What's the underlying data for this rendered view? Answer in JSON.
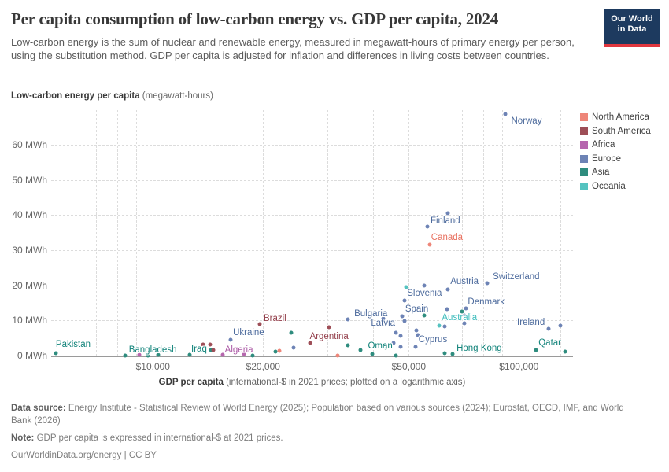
{
  "header": {
    "title": "Per capita consumption of low-carbon energy vs. GDP per capita, 2024",
    "subtitle": "Low-carbon energy is the sum of nuclear and renewable energy, measured in megawatt-hours of primary energy per person, using the substitution method. GDP per capita is adjusted for inflation and differences in living costs between countries."
  },
  "logo": {
    "line1": "Our World",
    "line2": "in Data",
    "bg_color": "#1d3a5f",
    "accent_color": "#e0373f"
  },
  "y_axis": {
    "title_bold": "Low-carbon energy per capita",
    "title_normal": " (megawatt-hours)",
    "ticks": [
      {
        "value": 0,
        "label": "0 MWh"
      },
      {
        "value": 10,
        "label": "10 MWh"
      },
      {
        "value": 20,
        "label": "20 MWh"
      },
      {
        "value": 30,
        "label": "30 MWh"
      },
      {
        "value": 40,
        "label": "40 MWh"
      },
      {
        "value": 50,
        "label": "50 MWh"
      },
      {
        "value": 60,
        "label": "60 MWh"
      }
    ]
  },
  "x_axis": {
    "title_bold": "GDP per capita",
    "title_normal": " (international-$ in 2021 prices; plotted on a logarithmic axis)",
    "ticks": [
      {
        "value": 10000,
        "label": "$10,000"
      },
      {
        "value": 20000,
        "label": "$20,000"
      },
      {
        "value": 50000,
        "label": "$50,000"
      },
      {
        "value": 100000,
        "label": "$100,000"
      }
    ],
    "minor_gridlines": [
      6000,
      7000,
      8000,
      9000,
      10000,
      20000,
      30000,
      40000,
      50000,
      60000,
      70000,
      80000,
      90000,
      100000,
      130000
    ]
  },
  "legend": [
    {
      "region": "North America",
      "color": "#ee8679"
    },
    {
      "region": "South America",
      "color": "#9e4e57"
    },
    {
      "region": "Africa",
      "color": "#b666ae"
    },
    {
      "region": "Europe",
      "color": "#6d83b5"
    },
    {
      "region": "Asia",
      "color": "#2e8c7e"
    },
    {
      "region": "Oceania",
      "color": "#55c3c0"
    }
  ],
  "chart_data": {
    "type": "scatter",
    "x_scale": "log",
    "x_domain": [
      5000,
      140000
    ],
    "y_domain": [
      0,
      69.8
    ],
    "grid": true,
    "legend_position": "right",
    "dot_colors": {
      "North America": "#ee8679",
      "South America": "#9e4e57",
      "Africa": "#b666ae",
      "Europe": "#6d83b5",
      "Asia": "#2e8c7e",
      "Oceania": "#55c3c0"
    },
    "label_colors": {
      "North America": "#e8705f",
      "South America": "#94404c",
      "Africa": "#ab59a5",
      "Europe": "#4c6a9c",
      "Asia": "#11837a",
      "Oceania": "#3fbdbd"
    },
    "points": [
      {
        "gdp": 5430,
        "mwh": 0.6,
        "region": "Asia"
      },
      {
        "gdp": 8390,
        "mwh": 0.1,
        "region": "Asia"
      },
      {
        "gdp": 9700,
        "mwh": 0.1,
        "region": "Asia"
      },
      {
        "gdp": 10330,
        "mwh": 0.3,
        "region": "Asia"
      },
      {
        "gdp": 12630,
        "mwh": 0.15,
        "region": "Asia"
      },
      {
        "gdp": 14390,
        "mwh": 1.6,
        "region": "Asia"
      },
      {
        "gdp": 18740,
        "mwh": 0.1,
        "region": "Asia"
      },
      {
        "gdp": 21630,
        "mwh": 1.2,
        "region": "Asia"
      },
      {
        "gdp": 23890,
        "mwh": 6.6,
        "region": "Asia"
      },
      {
        "gdp": 34100,
        "mwh": 3.0,
        "region": "Asia"
      },
      {
        "gdp": 36900,
        "mwh": 1.5,
        "region": "Asia"
      },
      {
        "gdp": 39700,
        "mwh": 0.5,
        "region": "Asia"
      },
      {
        "gdp": 43300,
        "mwh": 2.3,
        "region": "Asia"
      },
      {
        "gdp": 46200,
        "mwh": 0.1,
        "region": "Asia"
      },
      {
        "gdp": 55030,
        "mwh": 11.5,
        "region": "Asia"
      },
      {
        "gdp": 62760,
        "mwh": 0.6,
        "region": "Asia"
      },
      {
        "gdp": 65900,
        "mwh": 0.5,
        "region": "Asia"
      },
      {
        "gdp": 69900,
        "mwh": 12.6,
        "region": "Asia"
      },
      {
        "gdp": 111200,
        "mwh": 1.6,
        "region": "Asia"
      },
      {
        "gdp": 133500,
        "mwh": 1.1,
        "region": "Asia"
      },
      {
        "gdp": 9170,
        "mwh": 0.2,
        "region": "Africa"
      },
      {
        "gdp": 15480,
        "mwh": 0.15,
        "region": "Africa"
      },
      {
        "gdp": 17720,
        "mwh": 0.35,
        "region": "Africa"
      },
      {
        "gdp": 13730,
        "mwh": 3.1,
        "region": "South America"
      },
      {
        "gdp": 14310,
        "mwh": 3.2,
        "region": "South America"
      },
      {
        "gdp": 14600,
        "mwh": 1.5,
        "region": "South America"
      },
      {
        "gdp": 19590,
        "mwh": 9.0,
        "region": "South America"
      },
      {
        "gdp": 26850,
        "mwh": 3.6,
        "region": "South America"
      },
      {
        "gdp": 30200,
        "mwh": 8.1,
        "region": "South America"
      },
      {
        "gdp": 22140,
        "mwh": 1.3,
        "region": "North America"
      },
      {
        "gdp": 31900,
        "mwh": 0.1,
        "region": "North America"
      },
      {
        "gdp": 57100,
        "mwh": 31.6,
        "region": "North America"
      },
      {
        "gdp": 16270,
        "mwh": 4.4,
        "region": "Europe"
      },
      {
        "gdp": 24230,
        "mwh": 2.2,
        "region": "Europe"
      },
      {
        "gdp": 34150,
        "mwh": 10.2,
        "region": "Europe"
      },
      {
        "gdp": 42600,
        "mwh": 10.5,
        "region": "Europe"
      },
      {
        "gdp": 46100,
        "mwh": 6.4,
        "region": "Europe"
      },
      {
        "gdp": 47450,
        "mwh": 5.7,
        "region": "Europe"
      },
      {
        "gdp": 45400,
        "mwh": 3.6,
        "region": "Europe"
      },
      {
        "gdp": 47600,
        "mwh": 2.5,
        "region": "Europe"
      },
      {
        "gdp": 48000,
        "mwh": 11.3,
        "region": "Europe"
      },
      {
        "gdp": 48700,
        "mwh": 9.8,
        "region": "Europe"
      },
      {
        "gdp": 48700,
        "mwh": 15.7,
        "region": "Europe"
      },
      {
        "gdp": 52500,
        "mwh": 7.2,
        "region": "Europe"
      },
      {
        "gdp": 53100,
        "mwh": 5.8,
        "region": "Europe"
      },
      {
        "gdp": 52200,
        "mwh": 2.5,
        "region": "Europe"
      },
      {
        "gdp": 55030,
        "mwh": 19.9,
        "region": "Europe"
      },
      {
        "gdp": 56300,
        "mwh": 36.8,
        "region": "Europe"
      },
      {
        "gdp": 63900,
        "mwh": 40.5,
        "region": "Europe"
      },
      {
        "gdp": 63800,
        "mwh": 18.7,
        "region": "Europe"
      },
      {
        "gdp": 63600,
        "mwh": 13.1,
        "region": "Europe"
      },
      {
        "gdp": 62600,
        "mwh": 8.3,
        "region": "Europe"
      },
      {
        "gdp": 70800,
        "mwh": 9.2,
        "region": "Europe"
      },
      {
        "gdp": 71500,
        "mwh": 13.5,
        "region": "Europe"
      },
      {
        "gdp": 71000,
        "mwh": 11.4,
        "region": "Europe"
      },
      {
        "gdp": 81900,
        "mwh": 20.6,
        "region": "Europe"
      },
      {
        "gdp": 91800,
        "mwh": 68.7,
        "region": "Europe"
      },
      {
        "gdp": 120500,
        "mwh": 7.5,
        "region": "Europe"
      },
      {
        "gdp": 129800,
        "mwh": 8.4,
        "region": "Europe"
      },
      {
        "gdp": 49200,
        "mwh": 19.5,
        "region": "Oceania"
      },
      {
        "gdp": 60500,
        "mwh": 8.4,
        "region": "Oceania"
      }
    ],
    "country_labels": [
      {
        "text": "Pakistan",
        "gdp": 6055,
        "mwh": 3.1,
        "region": "Asia"
      },
      {
        "text": "Bangladesh",
        "gdp": 9990,
        "mwh": 1.6,
        "region": "Asia"
      },
      {
        "text": "Iraq",
        "gdp": 13370,
        "mwh": 1.7,
        "region": "Asia"
      },
      {
        "text": "Algeria",
        "gdp": 17180,
        "mwh": 1.6,
        "region": "Africa"
      },
      {
        "text": "Ukraine",
        "gdp": 18260,
        "mwh": 6.5,
        "region": "Europe"
      },
      {
        "text": "Brazil",
        "gdp": 21550,
        "mwh": 10.5,
        "region": "South America"
      },
      {
        "text": "Argentina",
        "gdp": 30300,
        "mwh": 5.4,
        "region": "South America"
      },
      {
        "text": "Bulgaria",
        "gdp": 39400,
        "mwh": 11.9,
        "region": "Europe"
      },
      {
        "text": "Latvia",
        "gdp": 42550,
        "mwh": 9.2,
        "region": "Europe"
      },
      {
        "text": "Oman",
        "gdp": 41800,
        "mwh": 2.7,
        "region": "Asia"
      },
      {
        "text": "Spain",
        "gdp": 52600,
        "mwh": 13.2,
        "region": "Europe"
      },
      {
        "text": "Slovenia",
        "gdp": 55200,
        "mwh": 17.7,
        "region": "Europe"
      },
      {
        "text": "Cyprus",
        "gdp": 58200,
        "mwh": 4.5,
        "region": "Europe"
      },
      {
        "text": "Australia",
        "gdp": 68800,
        "mwh": 10.7,
        "region": "Oceania"
      },
      {
        "text": "Hong Kong",
        "gdp": 77900,
        "mwh": 2.1,
        "region": "Asia"
      },
      {
        "text": "Finland",
        "gdp": 62950,
        "mwh": 38.3,
        "region": "Europe"
      },
      {
        "text": "Canada",
        "gdp": 63600,
        "mwh": 33.6,
        "region": "North America"
      },
      {
        "text": "Austria",
        "gdp": 71000,
        "mwh": 21.0,
        "region": "Europe"
      },
      {
        "text": "Denmark",
        "gdp": 81400,
        "mwh": 15.3,
        "region": "Europe"
      },
      {
        "text": "Switzerland",
        "gdp": 98300,
        "mwh": 22.4,
        "region": "Europe"
      },
      {
        "text": "Norway",
        "gdp": 104900,
        "mwh": 66.7,
        "region": "Europe"
      },
      {
        "text": "Ireland",
        "gdp": 107900,
        "mwh": 9.3,
        "region": "Europe"
      },
      {
        "text": "Qatar",
        "gdp": 121500,
        "mwh": 3.6,
        "region": "Asia"
      }
    ]
  },
  "footer": {
    "data_source_label": "Data source:",
    "data_source": " Energy Institute - Statistical Review of World Energy (2025); Population based on various sources (2024); Eurostat, OECD, IMF, and World Bank (2026)",
    "note_label": "Note:",
    "note": " GDP per capita is expressed in international-$ at 2021 prices.",
    "link": "OurWorldinData.org/energy",
    "separator": " | ",
    "license": "CC BY"
  }
}
